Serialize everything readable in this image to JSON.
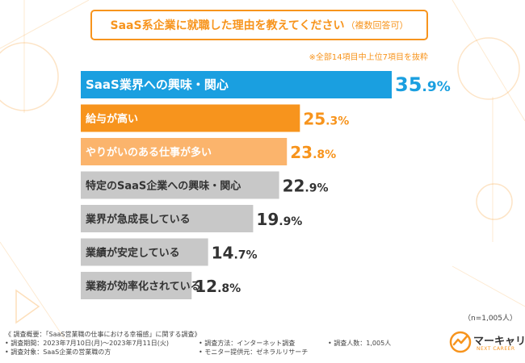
{
  "title": {
    "main": "SaaS系企業に就職した理由を教えてください",
    "sub": "（複数回答可）"
  },
  "note": "※全部14項目中上位7項目を抜粋",
  "chart_data": {
    "type": "bar",
    "orientation": "horizontal",
    "title": "SaaS系企業に就職した理由を教えてください（複数回答可）",
    "unit": "%",
    "xlim": [
      0,
      45
    ],
    "categories": [
      "SaaS業界への興味・関心",
      "給与が高い",
      "やりがいのある仕事が多い",
      "特定のSaaS企業への興味・関心",
      "業界が急成長している",
      "業績が安定している",
      "業務が効率化されている"
    ],
    "values": [
      35.9,
      25.3,
      23.8,
      22.9,
      19.9,
      14.7,
      12.8
    ],
    "value_labels": [
      "35.9%",
      "25.3%",
      "23.8%",
      "22.9%",
      "19.9%",
      "14.7%",
      "12.8%"
    ],
    "colors": [
      "#1a9fe0",
      "#f7941d",
      "#fbb46c",
      "#c8c8c8",
      "#c8c8c8",
      "#c8c8c8",
      "#c8c8c8"
    ],
    "label_colors": [
      "#ffffff",
      "#ffffff",
      "#ffffff",
      "#333333",
      "#333333",
      "#333333",
      "#333333"
    ],
    "value_colors": [
      "#1a9fe0",
      "#f7941d",
      "#f7941d",
      "#333333",
      "#333333",
      "#333333",
      "#333333"
    ]
  },
  "sample_size": "（n=1,005人）",
  "footer": {
    "overview": "《 調査概要：「SaaS営業職の仕事における幸福感」に関する調査》",
    "period": "• 調査期間：2023年7月10日(月)〜2023年7月11日(火)",
    "target": "• 調査対象：SaaS企業の営業職の方",
    "method": "• 調査方法：インターネット調査",
    "monitor": "• モニター提供元：ゼネラルリサーチ",
    "respondents": "• 調査人数：1,005人"
  },
  "logo": {
    "name": "マーキャリ",
    "tagline": "NEXT CAREER"
  }
}
